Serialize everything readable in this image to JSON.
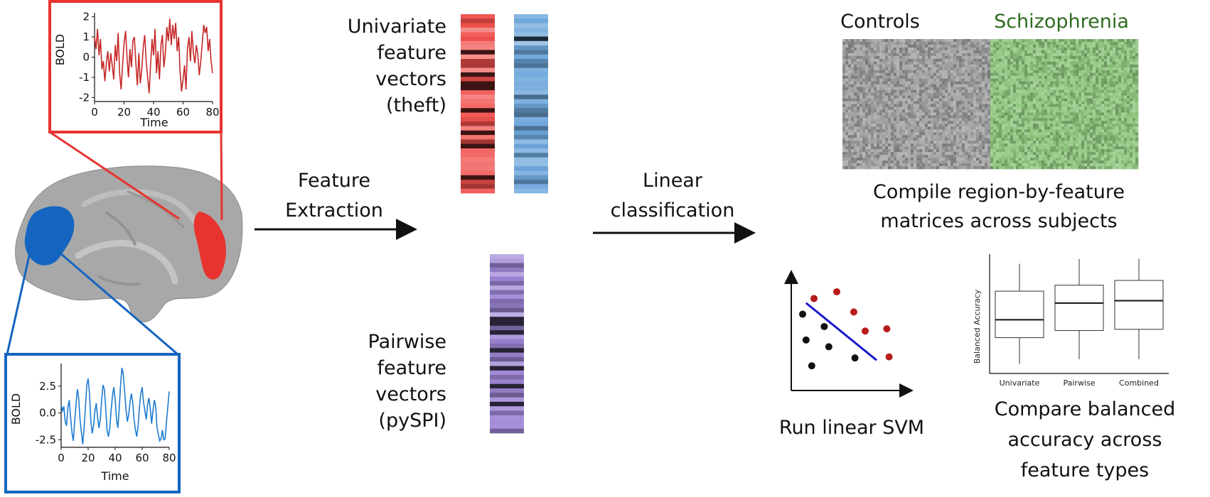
{
  "colors": {
    "red": "#e8332f",
    "red_trace": "#c62828",
    "blue": "#1565c0",
    "blue_trace": "#1e7bd0",
    "brain_gray": "#a8a8a8",
    "controls_matrix": "#a0a0a0",
    "schizophrenia_matrix": "#8fc57e",
    "schizophrenia_label": "#2e6b1f",
    "svm_red_point": "#b71c1c",
    "svm_black_point": "#111111",
    "svm_line": "#1a1acc"
  },
  "labels": {
    "univariate": [
      "Univariate",
      "feature",
      "vectors",
      "(theft)"
    ],
    "pairwise": [
      "Pairwise",
      "feature",
      "vectors",
      "(pySPI)"
    ],
    "feature_extraction": [
      "Feature",
      "Extraction"
    ],
    "linear_classification": [
      "Linear",
      "classification"
    ],
    "controls": "Controls",
    "schizophrenia": "Schizophrenia",
    "compile": [
      "Compile region-by-feature",
      "matrices across subjects"
    ],
    "run_svm": "Run linear SVM",
    "compare": [
      "Compare balanced",
      "accuracy across",
      "feature types"
    ]
  },
  "chart_data": [
    {
      "type": "line",
      "name": "red-timeseries",
      "ylabel": "BOLD",
      "xlabel": "Time",
      "xlim": [
        0,
        80
      ],
      "ylim": [
        -2.2,
        2.2
      ],
      "xticks": [
        "0",
        "20",
        "40",
        "60",
        "80"
      ],
      "yticks": [
        "2",
        "1",
        "0",
        "-1",
        "-2"
      ],
      "ytick_values": [
        2,
        1,
        0,
        -1,
        -2
      ],
      "xtick_values": [
        0,
        20,
        40,
        60,
        80
      ],
      "y": [
        1.0,
        0.4,
        1.4,
        0.1,
        0.9,
        -0.6,
        -0.2,
        -1.2,
        -0.3,
        0.3,
        -0.7,
        0.2,
        -0.4,
        -1.1,
        0.6,
        -0.2,
        1.2,
        -0.8,
        -1.6,
        -0.4,
        0.7,
        1.3,
        0.0,
        -1.0,
        0.4,
        -0.5,
        0.8,
        1.0,
        -0.3,
        -1.4,
        0.2,
        -1.3,
        -0.6,
        0.5,
        1.1,
        -0.2,
        -1.0,
        -1.8,
        -0.4,
        0.9,
        0.1,
        1.4,
        -0.8,
        0.3,
        -1.1,
        0.6,
        1.1,
        -0.5,
        0.2,
        1.5,
        0.8,
        1.9,
        0.6,
        1.6,
        0.9,
        1.7,
        0.3,
        1.0,
        -0.7,
        -1.7,
        -1.1,
        -0.4,
        -1.6,
        0.4,
        1.0,
        -0.2,
        1.3,
        0.2,
        -0.3,
        0.6,
        0.1,
        -0.9,
        -0.2,
        0.7,
        1.6,
        1.2,
        1.5,
        0.3,
        0.9,
        -0.2,
        -0.8
      ]
    },
    {
      "type": "line",
      "name": "blue-timeseries",
      "ylabel": "BOLD",
      "xlabel": "Time",
      "xlim": [
        0,
        80
      ],
      "ylim": [
        -3.2,
        4.6
      ],
      "xticks": [
        "0",
        "20",
        "40",
        "60",
        "80"
      ],
      "yticks": [
        "2.5",
        "0.0",
        "-2.5"
      ],
      "ytick_values": [
        2.5,
        0,
        -2.5
      ],
      "xtick_values": [
        0,
        20,
        40,
        60,
        80
      ],
      "y": [
        0.8,
        0.2,
        0.6,
        -0.8,
        -1.2,
        0.5,
        1.2,
        -0.4,
        -1.8,
        -2.6,
        -0.8,
        0.8,
        2.2,
        1.4,
        -0.6,
        -1.8,
        -2.9,
        -1.4,
        0.6,
        2.6,
        3.2,
        1.8,
        -0.8,
        -1.9,
        -1.2,
        0.2,
        0.9,
        -0.4,
        -1.4,
        -0.6,
        1.2,
        2.6,
        2.2,
        0.4,
        -1.6,
        -2.2,
        -1.4,
        0.2,
        1.6,
        2.4,
        1.2,
        -0.6,
        -1.4,
        0.4,
        2.6,
        4.2,
        3.6,
        2.0,
        0.4,
        -0.8,
        -0.2,
        1.0,
        1.8,
        1.0,
        -0.6,
        -1.6,
        -2.2,
        -1.2,
        0.6,
        1.8,
        2.4,
        1.0,
        0.2,
        -0.6,
        0.8,
        1.4,
        0.4,
        -1.0,
        0.2,
        1.2,
        0.6,
        -1.4,
        -2.0,
        -2.6,
        -2.4,
        -1.6,
        -2.5,
        -2.4,
        -0.8,
        0.6,
        2.0
      ]
    },
    {
      "type": "scatter",
      "name": "linear-svm-schematic",
      "red_points": [
        [
          2,
          8.2
        ],
        [
          4,
          8.8
        ],
        [
          5.5,
          7.0
        ],
        [
          6.5,
          5.3
        ],
        [
          8.4,
          5.5
        ],
        [
          8.6,
          3.0
        ]
      ],
      "black_points": [
        [
          1,
          6.8
        ],
        [
          1.3,
          4.5
        ],
        [
          2.9,
          5.7
        ],
        [
          3.3,
          3.9
        ],
        [
          5.6,
          2.9
        ],
        [
          1.8,
          2.2
        ]
      ],
      "boundary": [
        [
          1.3,
          7.8
        ],
        [
          7.5,
          2.7
        ]
      ],
      "xlim": [
        0,
        10
      ],
      "ylim": [
        0,
        10
      ]
    },
    {
      "type": "box",
      "name": "balanced-accuracy-boxplot",
      "ylabel": "Balanced Accuracy",
      "categories": [
        "Univariate",
        "Pairwise",
        "Combined"
      ],
      "ylim": [
        0,
        1
      ],
      "boxes": [
        {
          "min": 0.08,
          "q1": 0.3,
          "median": 0.45,
          "q3": 0.69,
          "max": 0.92
        },
        {
          "min": 0.12,
          "q1": 0.36,
          "median": 0.59,
          "q3": 0.74,
          "max": 0.96
        },
        {
          "min": 0.12,
          "q1": 0.37,
          "median": 0.61,
          "q3": 0.78,
          "max": 0.96
        }
      ]
    }
  ]
}
